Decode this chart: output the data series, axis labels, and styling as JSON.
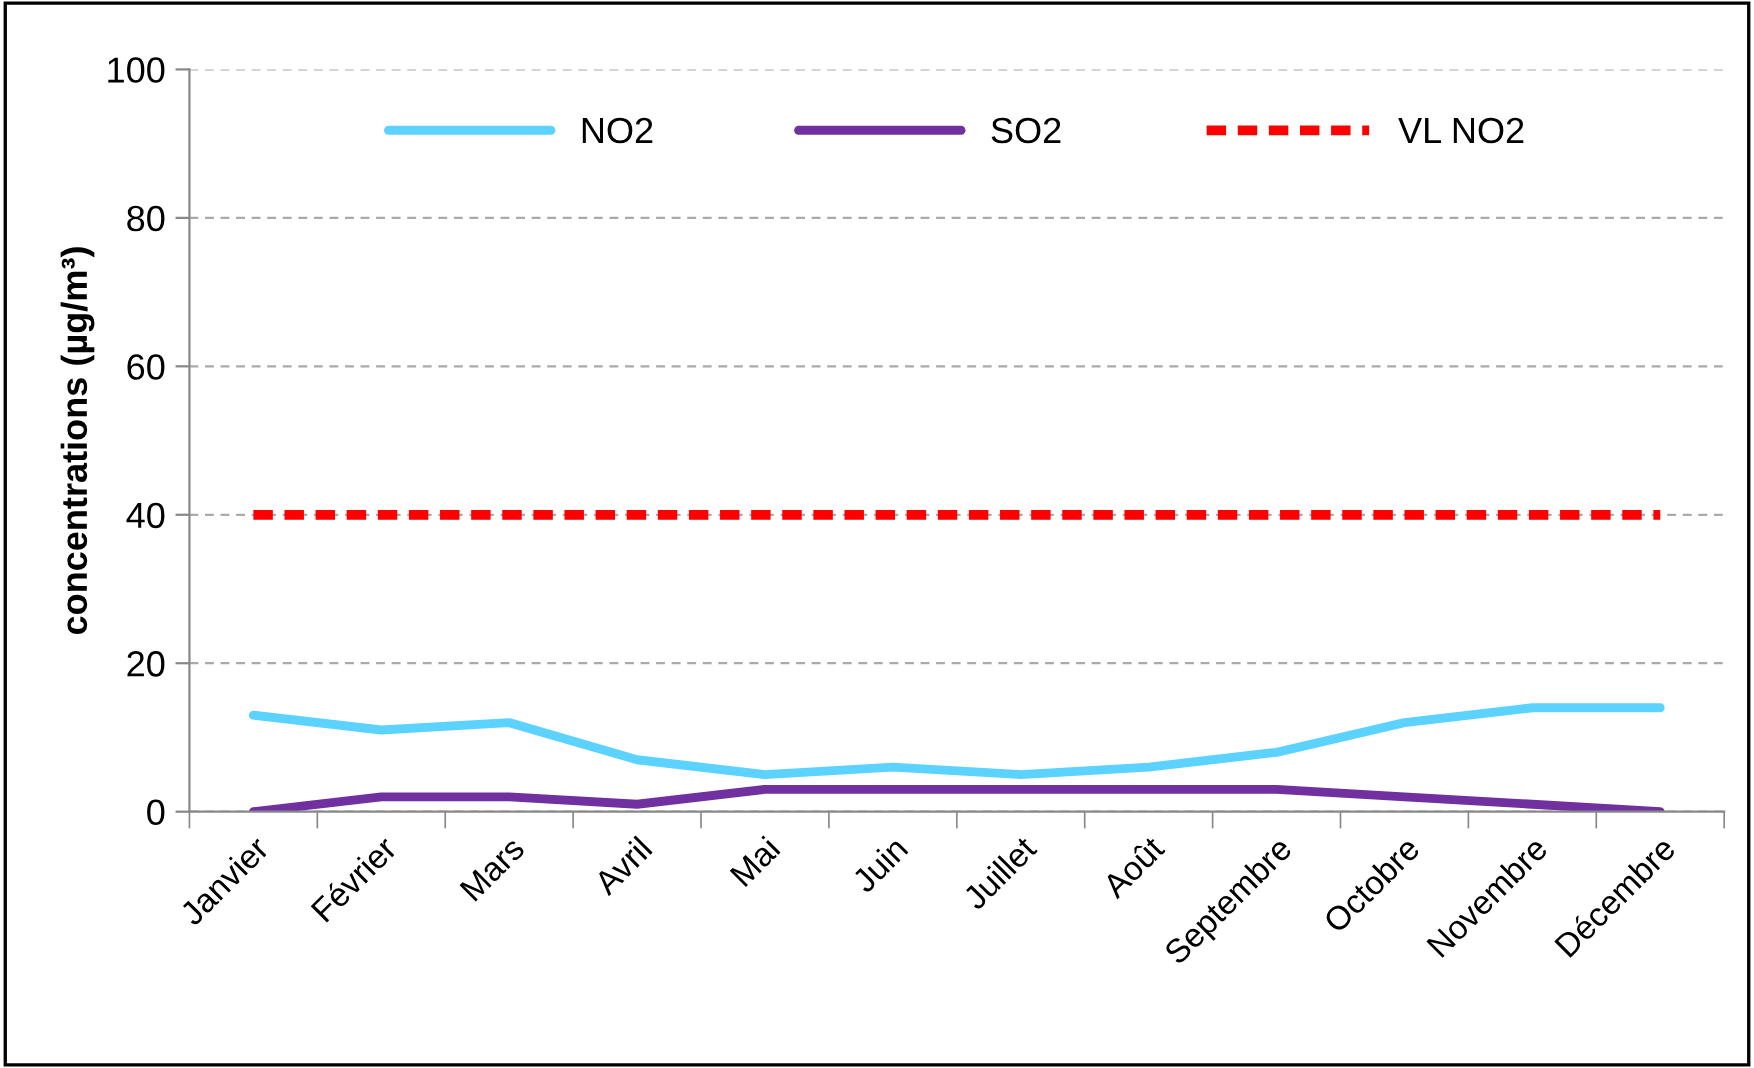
{
  "chart_data": {
    "type": "line",
    "ylabel": "concentrations (µg/m³)",
    "categories": [
      "Janvier",
      "Février",
      "Mars",
      "Avril",
      "Mai",
      "Juin",
      "Juillet",
      "Août",
      "Septembre",
      "Octobre",
      "Novembre",
      "Décembre"
    ],
    "series": [
      {
        "name": "NO2",
        "color": "#5bd2ff",
        "values": [
          13,
          11,
          12,
          7,
          5,
          6,
          5,
          6,
          8,
          12,
          14,
          14
        ]
      },
      {
        "name": "SO2",
        "color": "#7030a0",
        "values": [
          0,
          2,
          2,
          1,
          3,
          3,
          3,
          3,
          3,
          2,
          1,
          0
        ]
      },
      {
        "name": "VL NO2",
        "color": "#ff0000",
        "line_style": "dashed",
        "values": [
          40,
          40,
          40,
          40,
          40,
          40,
          40,
          40,
          40,
          40,
          40,
          40
        ]
      }
    ],
    "ylim": [
      0,
      100
    ],
    "yticks": [
      0,
      20,
      40,
      60,
      80,
      100
    ],
    "grid": "y",
    "legend": "top",
    "marker": "none"
  }
}
